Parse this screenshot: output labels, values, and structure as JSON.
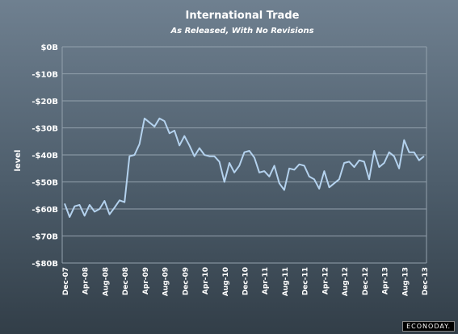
{
  "chart_data": {
    "type": "line",
    "title": "International Trade",
    "subtitle": "As Released, With No Revisions",
    "ylabel": "level",
    "ylim": [
      -80,
      0
    ],
    "y_ticks": [
      0,
      -10,
      -20,
      -30,
      -40,
      -50,
      -60,
      -70,
      -80
    ],
    "y_tick_labels": [
      "$0B",
      "-$10B",
      "-$20B",
      "-$30B",
      "-$40B",
      "-$50B",
      "-$60B",
      "-$70B",
      "-$80B"
    ],
    "x_tick_labels": [
      "Dec-07",
      "Apr-08",
      "Aug-08",
      "Dec-08",
      "Apr-09",
      "Aug-09",
      "Dec-09",
      "Apr-10",
      "Aug-10",
      "Dec-10",
      "Apr-11",
      "Aug-11",
      "Dec-11",
      "Apr-12",
      "Aug-12",
      "Dec-12",
      "Apr-13",
      "Aug-13",
      "Dec-13"
    ],
    "x_start": "Dec-07",
    "x_end": "Dec-13",
    "grid": true,
    "series": [
      {
        "color": "#b4d2ee",
        "values": [
          -58,
          -63,
          -59,
          -58.5,
          -62.5,
          -58.5,
          -61,
          -60,
          -57,
          -62,
          -59.5,
          -56.8,
          -57.5,
          -40.5,
          -40,
          -36,
          -26.5,
          -28,
          -29.5,
          -26.5,
          -27.5,
          -32,
          -31,
          -36.5,
          -33,
          -36.5,
          -40.5,
          -37.5,
          -40,
          -40.5,
          -40.5,
          -42.5,
          -50,
          -43,
          -46.5,
          -44,
          -39,
          -38.5,
          -41,
          -46.5,
          -46,
          -48,
          -44,
          -50.5,
          -53,
          -45,
          -45.5,
          -43.5,
          -44,
          -48,
          -49,
          -52.5,
          -46,
          -52,
          -50.5,
          -49,
          -43,
          -42.5,
          -44.5,
          -42,
          -42.5,
          -49,
          -38.5,
          -44.5,
          -43,
          -39,
          -40.5,
          -45,
          -34.5,
          -39,
          -39,
          -42,
          -40.5
        ]
      }
    ]
  },
  "branding": {
    "text": "ECONODAY."
  }
}
